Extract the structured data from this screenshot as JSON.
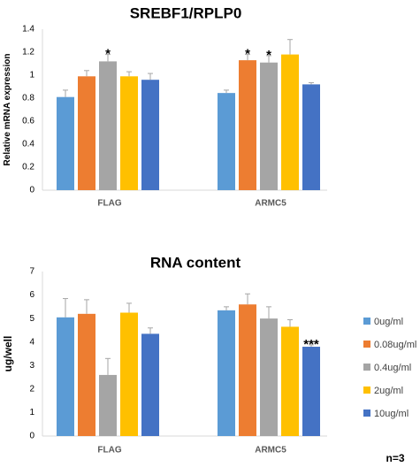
{
  "chart_data": [
    {
      "type": "bar",
      "title": "SREBF1/RPLP0",
      "ylabel": "Relative mRNA expression",
      "xlabel": "",
      "ylim": [
        0,
        1.4
      ],
      "yticks": [
        "0",
        "0.2",
        "0.4",
        "0.6",
        "0.8",
        "1",
        "1.2",
        "1.4"
      ],
      "categories": [
        "FLAG",
        "ARMC5"
      ],
      "series": [
        {
          "name": "0ug/ml",
          "color": "#5B9BD5",
          "values": [
            0.81,
            0.845
          ],
          "errors": [
            0.06,
            0.025
          ],
          "sig": [
            "",
            ""
          ]
        },
        {
          "name": "0.08ug/ml",
          "color": "#ED7D31",
          "values": [
            0.99,
            1.13
          ],
          "errors": [
            0.05,
            0.05
          ],
          "sig": [
            "",
            "*"
          ]
        },
        {
          "name": "0.4ug/ml",
          "color": "#A5A5A5",
          "values": [
            1.12,
            1.11
          ],
          "errors": [
            0.06,
            0.06
          ],
          "sig": [
            "*",
            "*"
          ]
        },
        {
          "name": "2ug/ml",
          "color": "#FFC000",
          "values": [
            0.99,
            1.18
          ],
          "errors": [
            0.04,
            0.13
          ],
          "sig": [
            "",
            ""
          ]
        },
        {
          "name": "10ug/ml",
          "color": "#4472C4",
          "values": [
            0.96,
            0.92
          ],
          "errors": [
            0.055,
            0.015
          ],
          "sig": [
            "",
            ""
          ]
        }
      ],
      "grid": false,
      "legend": "none"
    },
    {
      "type": "bar",
      "title": "RNA content",
      "ylabel": "ug/well",
      "xlabel": "",
      "ylim": [
        0,
        7
      ],
      "yticks": [
        "0",
        "1",
        "2",
        "3",
        "4",
        "5",
        "6",
        "7"
      ],
      "categories": [
        "FLAG",
        "ARMC5"
      ],
      "series": [
        {
          "name": "0ug/ml",
          "color": "#5B9BD5",
          "values": [
            5.05,
            5.35
          ],
          "errors": [
            0.8,
            0.15
          ],
          "sig": [
            "",
            ""
          ]
        },
        {
          "name": "0.08ug/ml",
          "color": "#ED7D31",
          "values": [
            5.2,
            5.6
          ],
          "errors": [
            0.6,
            0.45
          ],
          "sig": [
            "",
            ""
          ]
        },
        {
          "name": "0.4ug/ml",
          "color": "#A5A5A5",
          "values": [
            2.6,
            5.0
          ],
          "errors": [
            0.7,
            0.5
          ],
          "sig": [
            "",
            ""
          ]
        },
        {
          "name": "2ug/ml",
          "color": "#FFC000",
          "values": [
            5.25,
            4.65
          ],
          "errors": [
            0.4,
            0.3
          ],
          "sig": [
            "",
            ""
          ]
        },
        {
          "name": "10ug/ml",
          "color": "#4472C4",
          "values": [
            4.35,
            3.8
          ],
          "errors": [
            0.25,
            0.08
          ],
          "sig": [
            "",
            "***"
          ]
        }
      ],
      "grid": false,
      "legend": "right"
    }
  ],
  "legend": {
    "items": [
      {
        "label": "0ug/ml",
        "color": "#5B9BD5"
      },
      {
        "label": "0.08ug/ml",
        "color": "#ED7D31"
      },
      {
        "label": "0.4ug/ml",
        "color": "#A5A5A5"
      },
      {
        "label": "2ug/ml",
        "color": "#FFC000"
      },
      {
        "label": "10ug/ml",
        "color": "#4472C4"
      }
    ]
  },
  "footnote": "n=3"
}
